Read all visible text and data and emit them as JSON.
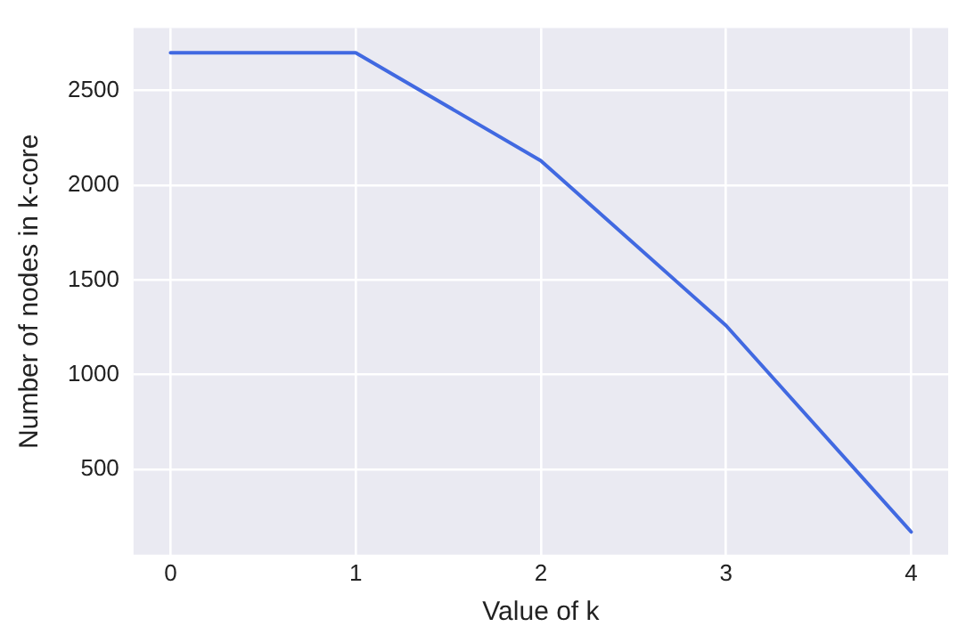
{
  "chart_data": {
    "type": "line",
    "xlabel": "Value of k",
    "ylabel": "Number of nodes in k-core",
    "x": [
      0,
      1,
      2,
      3,
      4
    ],
    "series": [
      {
        "color": "#4169e1",
        "values": [
          2700,
          2700,
          2130,
          1260,
          170
        ]
      }
    ],
    "xlim": [
      -0.2,
      4.2
    ],
    "xticks": [
      0,
      1,
      2,
      3,
      4
    ],
    "ylim": [
      50,
      2830
    ],
    "yticks": [
      500,
      1000,
      1500,
      2000,
      2500
    ],
    "grid": true,
    "legend": false,
    "marker": "none",
    "line_style": "solid"
  }
}
